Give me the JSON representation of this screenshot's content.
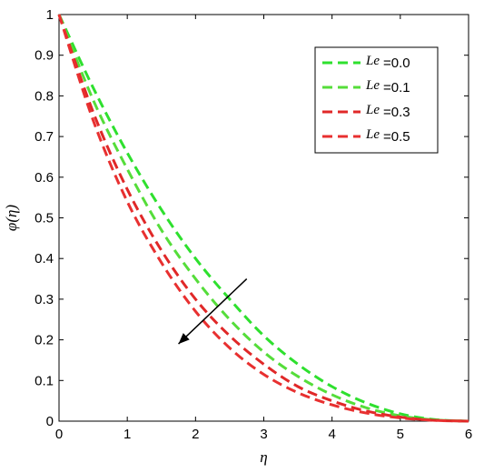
{
  "chart_data": {
    "type": "line",
    "title": "",
    "xlabel": "η",
    "ylabel": "φ(η)",
    "xlim": [
      0,
      6
    ],
    "ylim": [
      0,
      1
    ],
    "x_ticks": [
      "0",
      "1",
      "2",
      "3",
      "4",
      "5",
      "6"
    ],
    "y_ticks": [
      "0",
      "0.1",
      "0.2",
      "0.3",
      "0.4",
      "0.5",
      "0.6",
      "0.7",
      "0.8",
      "0.9",
      "1"
    ],
    "grid": false,
    "legend_position": "top-right",
    "line_style": "dashed",
    "x": [
      0,
      0.5,
      1,
      1.5,
      2,
      2.5,
      3,
      3.5,
      4,
      4.5,
      5,
      5.5,
      6
    ],
    "series": [
      {
        "name": "Le =0.0",
        "legend_symbol": "Le",
        "legend_value": "=0.0",
        "color": "#2ee02e",
        "values": [
          1.0,
          0.82,
          0.66,
          0.52,
          0.4,
          0.3,
          0.21,
          0.14,
          0.085,
          0.045,
          0.018,
          0.004,
          0.0
        ]
      },
      {
        "name": "Le =0.1",
        "legend_symbol": "Le",
        "legend_value": "=0.1",
        "color": "#55dd3a",
        "values": [
          1.0,
          0.79,
          0.62,
          0.47,
          0.35,
          0.25,
          0.17,
          0.11,
          0.065,
          0.033,
          0.013,
          0.003,
          0.0
        ]
      },
      {
        "name": "Le =0.3",
        "legend_symbol": "Le",
        "legend_value": "=0.3",
        "color": "#e02828",
        "values": [
          1.0,
          0.76,
          0.57,
          0.42,
          0.3,
          0.21,
          0.14,
          0.085,
          0.05,
          0.025,
          0.01,
          0.002,
          0.0
        ]
      },
      {
        "name": "Le =0.5",
        "legend_symbol": "Le",
        "legend_value": "=0.5",
        "color": "#e83030",
        "values": [
          1.0,
          0.74,
          0.54,
          0.39,
          0.27,
          0.18,
          0.115,
          0.07,
          0.04,
          0.02,
          0.008,
          0.002,
          0.0
        ]
      }
    ],
    "annotations": [
      {
        "type": "arrow",
        "from": [
          2.75,
          0.35
        ],
        "to": [
          1.75,
          0.19
        ]
      }
    ]
  }
}
